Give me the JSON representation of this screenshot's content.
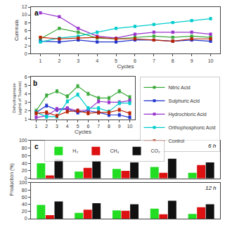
{
  "chart_data": [
    {
      "type": "line",
      "annotations": [
        "a"
      ],
      "xlabel": "Cycles",
      "ylabel": "Cummula",
      "x": [
        1,
        2,
        3,
        4,
        5,
        6,
        7,
        8,
        9,
        10
      ],
      "xlim": [
        0.5,
        10.5
      ],
      "xticks": [
        1,
        2,
        3,
        4,
        5,
        6,
        7,
        8,
        9,
        10
      ],
      "ylim": [
        0,
        12
      ],
      "yticks": [
        0,
        2,
        4,
        6,
        8,
        10,
        12
      ],
      "yerr": 0.3,
      "marker": "square",
      "grid": false,
      "series": [
        {
          "color": "#3aaa3a",
          "values": [
            3.8,
            6.5,
            5.5,
            4.0,
            3.8,
            4.2,
            4.5,
            4.2,
            4.5,
            4.2
          ]
        },
        {
          "color": "#2233cc",
          "values": [
            3.2,
            3.0,
            3.5,
            3.0,
            3.0,
            3.5,
            3.5,
            3.2,
            3.5,
            3.2
          ]
        },
        {
          "color": "#9933cc",
          "values": [
            10.5,
            9.5,
            6.5,
            4.5,
            4.0,
            5.0,
            5.5,
            5.5,
            5.5,
            5.0
          ]
        },
        {
          "color": "#00cccc",
          "values": [
            3.0,
            4.0,
            4.5,
            5.5,
            6.5,
            7.0,
            7.5,
            8.0,
            8.5,
            9.0
          ]
        },
        {
          "color": "#bb2200",
          "values": [
            4.2,
            3.8,
            4.0,
            4.2,
            3.8,
            3.8,
            3.5,
            3.2,
            3.8,
            3.8
          ]
        }
      ]
    },
    {
      "type": "line",
      "annotations": [
        "b"
      ],
      "xlabel": "Cycles",
      "ylabel": "Dehydrogenase (μg/ml of Toulene)",
      "x": [
        1,
        2,
        3,
        4,
        5,
        6,
        7,
        8,
        9,
        10
      ],
      "xlim": [
        0.5,
        10.5
      ],
      "xticks": [
        1,
        2,
        3,
        4,
        5,
        6,
        7,
        8,
        9,
        10
      ],
      "ylim": [
        1,
        6
      ],
      "yticks": [
        1,
        2,
        3,
        4,
        5,
        6
      ],
      "yerr": 0.2,
      "marker": "square",
      "grid": false,
      "legend": "upper right",
      "series": [
        {
          "name": "Nitric Acid",
          "color": "#3aaa3a",
          "values": [
            2.0,
            3.8,
            4.3,
            3.7,
            4.9,
            4.0,
            3.5,
            3.5,
            4.3,
            3.6
          ]
        },
        {
          "name": "Sulphuric Acid",
          "color": "#2233cc",
          "values": [
            1.8,
            2.6,
            2.1,
            2.2,
            1.8,
            2.0,
            1.8,
            1.5,
            1.5,
            1.2
          ]
        },
        {
          "name": "Hydrochloric Acid",
          "color": "#9933cc",
          "values": [
            1.2,
            1.4,
            2.2,
            2.3,
            2.0,
            2.1,
            3.1,
            3.0,
            3.0,
            3.2
          ]
        },
        {
          "name": "Orthophosphoric Acid",
          "color": "#00cccc",
          "values": [
            1.8,
            1.3,
            1.3,
            3.1,
            3.9,
            2.3,
            2.3,
            1.9,
            2.9,
            2.9
          ]
        },
        {
          "name": "Control",
          "color": "#bb2200",
          "values": [
            1.7,
            1.8,
            1.4,
            1.9,
            2.0,
            1.7,
            1.8,
            1.8,
            2.1,
            1.7
          ]
        }
      ]
    },
    {
      "type": "bar",
      "annotations": [
        "c",
        "6 h"
      ],
      "ylabel": "Production (%)",
      "categories": [
        null,
        null,
        null,
        null,
        null
      ],
      "ylim": [
        0,
        100
      ],
      "yticks": [
        0,
        20,
        40,
        60,
        80,
        100
      ],
      "tick_labels": "y",
      "grid": false,
      "legend": "upper left",
      "series": [
        {
          "name": "H₂",
          "color": "#22dd22",
          "values": [
            40,
            18,
            25,
            30,
            15
          ]
        },
        {
          "name": "CH₄",
          "color": "#dd1111",
          "values": [
            8,
            28,
            20,
            15,
            35
          ]
        },
        {
          "name": "CO₂",
          "color": "#111111",
          "values": [
            50,
            45,
            42,
            52,
            42
          ]
        }
      ]
    },
    {
      "type": "bar",
      "annotations": [
        "12 h"
      ],
      "categories": [
        null,
        null,
        null,
        null,
        null
      ],
      "ylim": [
        0,
        100
      ],
      "yticks": [
        0,
        20,
        40,
        60,
        80,
        100
      ],
      "tick_labels": "y",
      "grid": false,
      "series": [
        {
          "color": "#22dd22",
          "values": [
            38,
            16,
            23,
            28,
            13
          ]
        },
        {
          "color": "#dd1111",
          "values": [
            10,
            25,
            22,
            12,
            32
          ]
        },
        {
          "color": "#111111",
          "values": [
            48,
            43,
            40,
            50,
            40
          ]
        }
      ]
    }
  ]
}
